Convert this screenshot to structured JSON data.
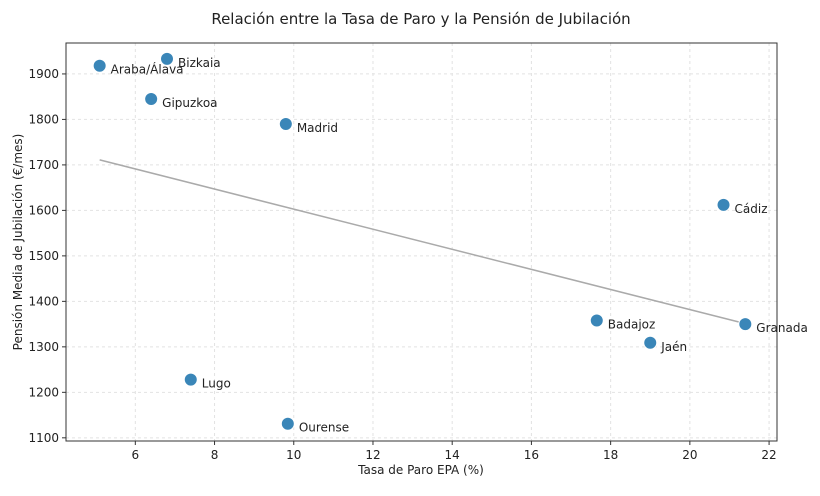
{
  "chart_data": {
    "type": "scatter",
    "title": "Relación entre la Tasa de Paro y la Pensión de Jubilación",
    "xlabel": "Tasa de Paro EPA (%)",
    "ylabel": "Pensión Media de Jubilación (€/mes)",
    "xlim": [
      4.25,
      22.2
    ],
    "ylim": [
      1093,
      1968
    ],
    "xticks": [
      6,
      8,
      10,
      12,
      14,
      16,
      18,
      20,
      22
    ],
    "yticks": [
      1100,
      1200,
      1300,
      1400,
      1500,
      1600,
      1700,
      1800,
      1900
    ],
    "grid": true,
    "point_color": "#3a86b8",
    "trend_color": "#aaaaaa",
    "points": [
      {
        "label": "Araba/Álava",
        "x": 5.1,
        "y": 1918
      },
      {
        "label": "Bizkaia",
        "x": 6.8,
        "y": 1933
      },
      {
        "label": "Gipuzkoa",
        "x": 6.4,
        "y": 1845
      },
      {
        "label": "Madrid",
        "x": 9.8,
        "y": 1790
      },
      {
        "label": "Cádiz",
        "x": 20.85,
        "y": 1612
      },
      {
        "label": "Badajoz",
        "x": 17.65,
        "y": 1358
      },
      {
        "label": "Granada",
        "x": 21.4,
        "y": 1350
      },
      {
        "label": "Jaén",
        "x": 19.0,
        "y": 1309
      },
      {
        "label": "Lugo",
        "x": 7.4,
        "y": 1228
      },
      {
        "label": "Ourense",
        "x": 9.85,
        "y": 1131
      }
    ],
    "trendline": {
      "x": [
        5.1,
        21.4
      ],
      "y": [
        1711,
        1351
      ]
    }
  }
}
